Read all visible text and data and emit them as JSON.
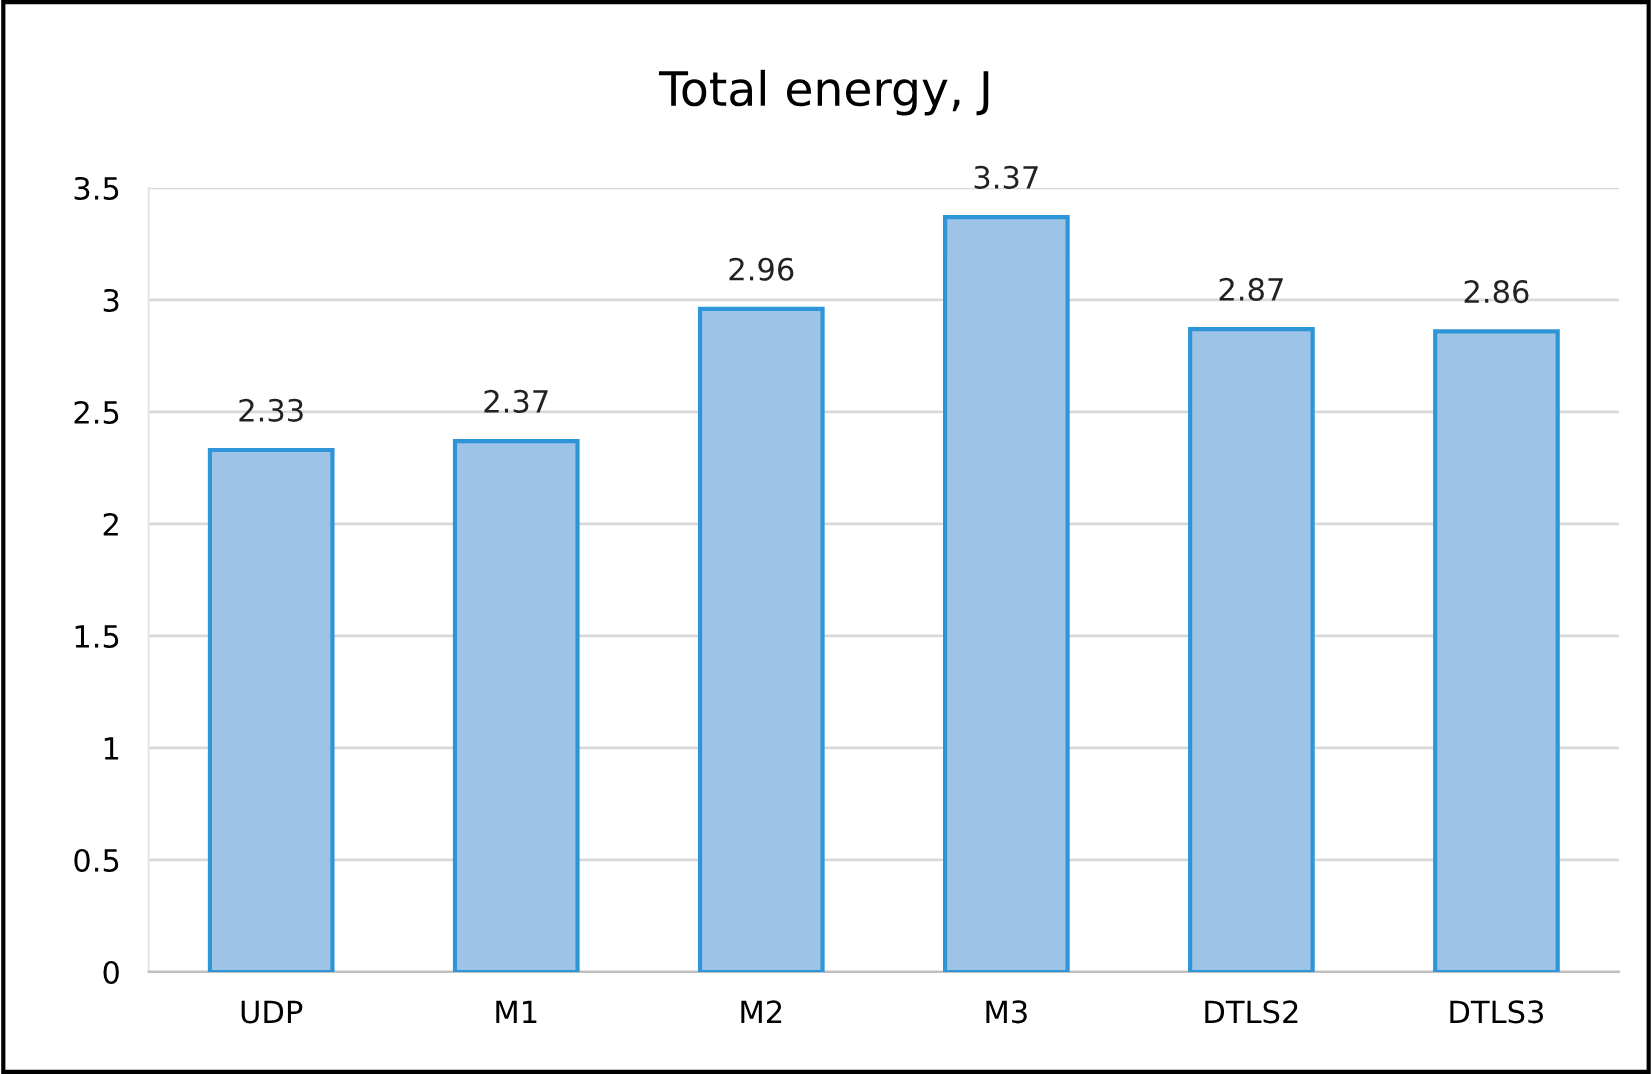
{
  "chart_data": {
    "type": "bar",
    "title": "Total energy, J",
    "categories": [
      "UDP",
      "M1",
      "M2",
      "M3",
      "DTLS2",
      "DTLS3"
    ],
    "values": [
      2.33,
      2.37,
      2.96,
      3.37,
      2.87,
      2.86
    ],
    "color": "#9dc3e6",
    "ylim": [
      0,
      3.5
    ],
    "yticks": [
      0,
      0.5,
      1,
      1.5,
      2,
      2.5,
      3,
      3.5
    ],
    "grid": "y",
    "data_labels": true
  }
}
